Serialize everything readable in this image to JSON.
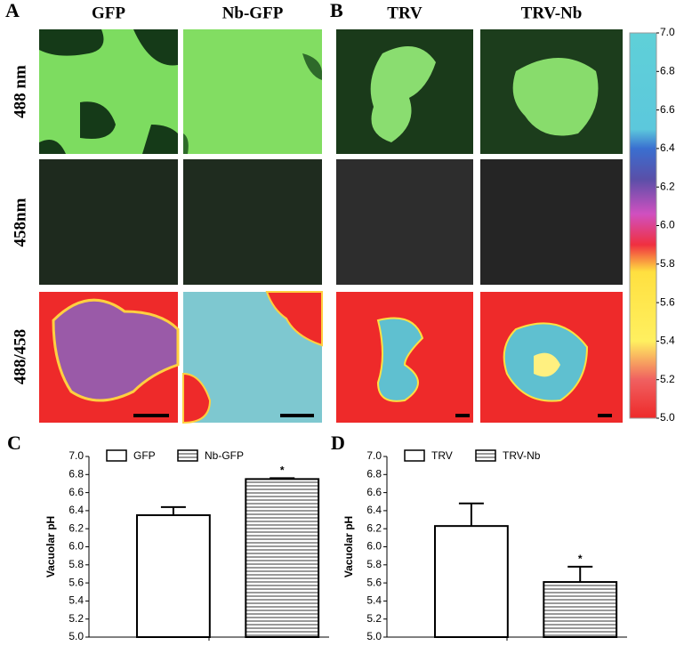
{
  "figure": {
    "panel_a": "A",
    "panel_b": "B",
    "columns": [
      "GFP",
      "Nb-GFP",
      "TRV",
      "TRV-Nb"
    ],
    "rows": [
      "488 nm",
      "458nm",
      "488/458"
    ],
    "colorbar": {
      "lim": [
        5,
        7
      ],
      "ticks": [
        {
          "value": 5,
          "label": "5.0"
        },
        {
          "value": 5.2,
          "label": "5.2"
        },
        {
          "value": 5.4,
          "label": "5.4"
        },
        {
          "value": 5.6,
          "label": "5.6"
        },
        {
          "value": 5.8,
          "label": "5.8"
        },
        {
          "value": 6,
          "label": "6.0"
        },
        {
          "value": 6.2,
          "label": "6.2"
        },
        {
          "value": 6.4,
          "label": "6.4"
        },
        {
          "value": 6.6,
          "label": "6.6"
        },
        {
          "value": 6.8,
          "label": "6.8"
        },
        {
          "value": 7,
          "label": "7.0"
        }
      ]
    }
  },
  "chart_data": [
    {
      "type": "bar",
      "panel_label": "C",
      "ylabel": "Vacuolar pH",
      "categories": [
        null
      ],
      "legend": "top",
      "series": [
        {
          "name": "GFP",
          "color": "#ffffff",
          "pattern": "none",
          "values": [
            6.35
          ],
          "errors": [
            0.09
          ]
        },
        {
          "name": "Nb-GFP",
          "color": "#ffffff",
          "pattern": "horizontal-lines",
          "values": [
            6.75
          ],
          "errors": [
            0.01
          ]
        }
      ],
      "annotations": [
        {
          "text": "*",
          "series": 1
        }
      ],
      "ylim": [
        5,
        7
      ],
      "yticks": [
        {
          "value": 5,
          "label": "5.0"
        },
        {
          "value": 5.2,
          "label": "5.2"
        },
        {
          "value": 5.4,
          "label": "5.4"
        },
        {
          "value": 5.6,
          "label": "5.6"
        },
        {
          "value": 5.8,
          "label": "5.8"
        },
        {
          "value": 6,
          "label": "6.0"
        },
        {
          "value": 6.2,
          "label": "6.2"
        },
        {
          "value": 6.4,
          "label": "6.4"
        },
        {
          "value": 6.6,
          "label": "6.6"
        },
        {
          "value": 6.8,
          "label": "6.8"
        },
        {
          "value": 7,
          "label": "7.0"
        }
      ]
    },
    {
      "type": "bar",
      "panel_label": "D",
      "ylabel": "Vacuolar pH",
      "categories": [
        null
      ],
      "legend": "top",
      "series": [
        {
          "name": "TRV",
          "color": "#ffffff",
          "pattern": "none",
          "values": [
            6.23
          ],
          "errors": [
            0.25
          ]
        },
        {
          "name": "TRV-Nb",
          "color": "#ffffff",
          "pattern": "horizontal-lines",
          "values": [
            5.61
          ],
          "errors": [
            0.17
          ]
        }
      ],
      "annotations": [
        {
          "text": "*",
          "series": 1
        }
      ],
      "ylim": [
        5,
        7
      ],
      "yticks": [
        {
          "value": 5,
          "label": "5.0"
        },
        {
          "value": 5.2,
          "label": "5.2"
        },
        {
          "value": 5.4,
          "label": "5.4"
        },
        {
          "value": 5.6,
          "label": "5.6"
        },
        {
          "value": 5.8,
          "label": "5.8"
        },
        {
          "value": 6,
          "label": "6.0"
        },
        {
          "value": 6.2,
          "label": "6.2"
        },
        {
          "value": 6.4,
          "label": "6.4"
        },
        {
          "value": 6.6,
          "label": "6.6"
        },
        {
          "value": 6.8,
          "label": "6.8"
        },
        {
          "value": 7,
          "label": "7.0"
        }
      ]
    }
  ]
}
